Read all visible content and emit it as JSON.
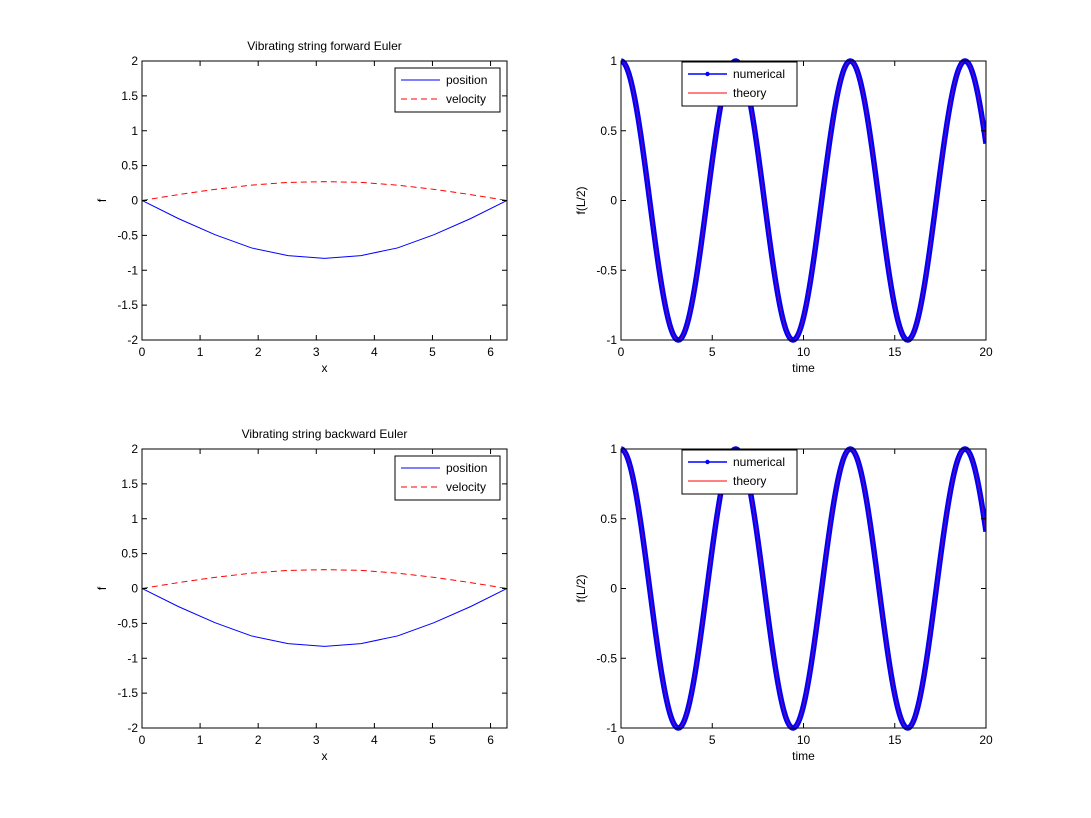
{
  "figure": {
    "background": "#ffffff",
    "axes_color": "#000000"
  },
  "chart_data": [
    {
      "type": "line",
      "title": "Vibrating string forward Euler",
      "xlabel": "x",
      "ylabel": "f",
      "xlim": [
        0,
        6.2832
      ],
      "ylim": [
        -2,
        2
      ],
      "xticks": [
        0,
        1,
        2,
        3,
        4,
        5,
        6
      ],
      "yticks": [
        -2,
        -1.5,
        -1,
        -0.5,
        0,
        0.5,
        1,
        1.5,
        2
      ],
      "xtick_labels": [
        "0",
        "1",
        "2",
        "3",
        "4",
        "5",
        "6"
      ],
      "ytick_labels": [
        "-2",
        "-1.5",
        "-1",
        "-0.5",
        "0",
        "0.5",
        "1",
        "1.5",
        "2"
      ],
      "legend": {
        "position": "top-right"
      },
      "series": [
        {
          "name": "position",
          "color": "#0000ff",
          "style": "solid",
          "x": [
            0,
            0.6283,
            1.2566,
            1.885,
            2.5133,
            3.1416,
            3.7699,
            4.3982,
            5.0265,
            5.6549,
            6.2832
          ],
          "y": [
            0,
            -0.26,
            -0.49,
            -0.68,
            -0.79,
            -0.83,
            -0.79,
            -0.68,
            -0.49,
            -0.26,
            0
          ]
        },
        {
          "name": "velocity",
          "color": "#ff0000",
          "style": "dashed",
          "x": [
            0,
            0.6283,
            1.2566,
            1.885,
            2.5133,
            3.1416,
            3.7699,
            4.3982,
            5.0265,
            5.6549,
            6.2832
          ],
          "y": [
            0,
            0.085,
            0.16,
            0.22,
            0.26,
            0.27,
            0.26,
            0.22,
            0.16,
            0.085,
            0
          ]
        }
      ]
    },
    {
      "type": "line",
      "title": "",
      "xlabel": "time",
      "ylabel": "f(L/2)",
      "xlim": [
        0,
        20
      ],
      "ylim": [
        -1,
        1
      ],
      "xticks": [
        0,
        5,
        10,
        15,
        20
      ],
      "yticks": [
        -1,
        -0.5,
        0,
        0.5,
        1
      ],
      "xtick_labels": [
        "0",
        "5",
        "10",
        "15",
        "20"
      ],
      "ytick_labels": [
        "-1",
        "-0.5",
        "0",
        "0.5",
        "1"
      ],
      "legend": {
        "position": "top-left"
      },
      "series": [
        {
          "name": "numerical",
          "color": "#0000ff",
          "style": "solid-marker",
          "function": "cos",
          "x_start": 0,
          "x_end": 20,
          "amplitude": 1
        },
        {
          "name": "theory",
          "color": "#ff0000",
          "style": "solid",
          "function": "cos",
          "x_start": 0,
          "x_end": 20,
          "amplitude": 1
        }
      ]
    },
    {
      "type": "line",
      "title": "Vibrating string backward Euler",
      "xlabel": "x",
      "ylabel": "f",
      "xlim": [
        0,
        6.2832
      ],
      "ylim": [
        -2,
        2
      ],
      "xticks": [
        0,
        1,
        2,
        3,
        4,
        5,
        6
      ],
      "yticks": [
        -2,
        -1.5,
        -1,
        -0.5,
        0,
        0.5,
        1,
        1.5,
        2
      ],
      "xtick_labels": [
        "0",
        "1",
        "2",
        "3",
        "4",
        "5",
        "6"
      ],
      "ytick_labels": [
        "-2",
        "-1.5",
        "-1",
        "-0.5",
        "0",
        "0.5",
        "1",
        "1.5",
        "2"
      ],
      "legend": {
        "position": "top-right"
      },
      "series": [
        {
          "name": "position",
          "color": "#0000ff",
          "style": "solid",
          "x": [
            0,
            0.6283,
            1.2566,
            1.885,
            2.5133,
            3.1416,
            3.7699,
            4.3982,
            5.0265,
            5.6549,
            6.2832
          ],
          "y": [
            0,
            -0.26,
            -0.49,
            -0.68,
            -0.79,
            -0.83,
            -0.79,
            -0.68,
            -0.49,
            -0.26,
            0
          ]
        },
        {
          "name": "velocity",
          "color": "#ff0000",
          "style": "dashed",
          "x": [
            0,
            0.6283,
            1.2566,
            1.885,
            2.5133,
            3.1416,
            3.7699,
            4.3982,
            5.0265,
            5.6549,
            6.2832
          ],
          "y": [
            0,
            0.085,
            0.16,
            0.22,
            0.26,
            0.27,
            0.26,
            0.22,
            0.16,
            0.085,
            0
          ]
        }
      ]
    },
    {
      "type": "line",
      "title": "",
      "xlabel": "time",
      "ylabel": "f(L/2)",
      "xlim": [
        0,
        20
      ],
      "ylim": [
        -1,
        1
      ],
      "xticks": [
        0,
        5,
        10,
        15,
        20
      ],
      "yticks": [
        -1,
        -0.5,
        0,
        0.5,
        1
      ],
      "xtick_labels": [
        "0",
        "5",
        "10",
        "15",
        "20"
      ],
      "ytick_labels": [
        "-1",
        "-0.5",
        "0",
        "0.5",
        "1"
      ],
      "legend": {
        "position": "top-left"
      },
      "series": [
        {
          "name": "numerical",
          "color": "#0000ff",
          "style": "solid-marker",
          "function": "cos",
          "x_start": 0,
          "x_end": 20,
          "amplitude": 1
        },
        {
          "name": "theory",
          "color": "#ff0000",
          "style": "solid",
          "function": "cos",
          "x_start": 0,
          "x_end": 20,
          "amplitude": 1
        }
      ]
    }
  ]
}
